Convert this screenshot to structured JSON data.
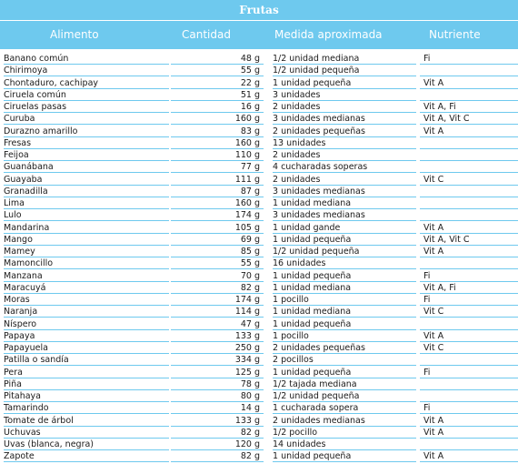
{
  "title": "Frutas",
  "columns": [
    "Alimento",
    "Cantidad",
    "Medida aproximada",
    "Nutriente"
  ],
  "rows": [
    {
      "food": "Banano común",
      "qty": "48 g",
      "measure": "1/2 unidad mediana",
      "nutrient": "Fi"
    },
    {
      "food": "Chirimoya",
      "qty": "55 g",
      "measure": "1/2 unidad pequeña",
      "nutrient": ""
    },
    {
      "food": "Chontaduro, cachipay",
      "qty": "22 g",
      "measure": "1 unidad pequeña",
      "nutrient": "Vit A"
    },
    {
      "food": "Ciruela común",
      "qty": "51 g",
      "measure": "3 unidades",
      "nutrient": ""
    },
    {
      "food": "Ciruelas pasas",
      "qty": "16 g",
      "measure": "2 unidades",
      "nutrient": "Vit A, Fi"
    },
    {
      "food": "Curuba",
      "qty": "160 g",
      "measure": "3 unidades medianas",
      "nutrient": "Vit A, Vit C"
    },
    {
      "food": "Durazno amarillo",
      "qty": "83 g",
      "measure": "2 unidades pequeñas",
      "nutrient": "Vit A"
    },
    {
      "food": "Fresas",
      "qty": "160 g",
      "measure": "13 unidades",
      "nutrient": ""
    },
    {
      "food": "Feijoa",
      "qty": "110 g",
      "measure": "2 unidades",
      "nutrient": ""
    },
    {
      "food": "Guanábana",
      "qty": "77 g",
      "measure": "4 cucharadas soperas",
      "nutrient": ""
    },
    {
      "food": "Guayaba",
      "qty": "111 g",
      "measure": "2 unidades",
      "nutrient": "Vit C"
    },
    {
      "food": "Granadilla",
      "qty": "87 g",
      "measure": "3 unidades medianas",
      "nutrient": ""
    },
    {
      "food": "Lima",
      "qty": "160 g",
      "measure": "1 unidad mediana",
      "nutrient": ""
    },
    {
      "food": "Lulo",
      "qty": "174 g",
      "measure": "3 unidades medianas",
      "nutrient": ""
    },
    {
      "food": "Mandarina",
      "qty": "105 g",
      "measure": "1 unidad gande",
      "nutrient": "Vit A"
    },
    {
      "food": "Mango",
      "qty": "69 g",
      "measure": "1 unidad pequeña",
      "nutrient": "Vit A, Vit C"
    },
    {
      "food": "Mamey",
      "qty": "85 g",
      "measure": "1/2 unidad pequeña",
      "nutrient": "Vit A"
    },
    {
      "food": "Mamoncillo",
      "qty": "55 g",
      "measure": "16 unidades",
      "nutrient": ""
    },
    {
      "food": "Manzana",
      "qty": "70 g",
      "measure": "1 unidad pequeña",
      "nutrient": "Fi"
    },
    {
      "food": "Maracuyá",
      "qty": "82 g",
      "measure": "1 unidad mediana",
      "nutrient": "Vit A, Fi"
    },
    {
      "food": "Moras",
      "qty": "174 g",
      "measure": "1 pocillo",
      "nutrient": "Fi"
    },
    {
      "food": "Naranja",
      "qty": "114 g",
      "measure": "1 unidad mediana",
      "nutrient": "Vit C"
    },
    {
      "food": "Níspero",
      "qty": "47 g",
      "measure": "1 unidad pequeña",
      "nutrient": ""
    },
    {
      "food": "Papaya",
      "qty": "133 g",
      "measure": "1 pocillo",
      "nutrient": "Vit A"
    },
    {
      "food": "Papayuela",
      "qty": "250 g",
      "measure": "2 unidades pequeñas",
      "nutrient": "Vit C"
    },
    {
      "food": "Patilla o sandía",
      "qty": "334 g",
      "measure": "2 pocillos",
      "nutrient": ""
    },
    {
      "food": "Pera",
      "qty": "125 g",
      "measure": "1 unidad pequeña",
      "nutrient": "Fi"
    },
    {
      "food": "Piña",
      "qty": "78 g",
      "measure": "1/2 tajada mediana",
      "nutrient": ""
    },
    {
      "food": "Pitahaya",
      "qty": "80 g",
      "measure": "1/2 unidad pequeña",
      "nutrient": ""
    },
    {
      "food": "Tamarindo",
      "qty": "14 g",
      "measure": "1 cucharada sopera",
      "nutrient": "Fi"
    },
    {
      "food": "Tomate de árbol",
      "qty": "133 g",
      "measure": "2 unidades medianas",
      "nutrient": "Vit A"
    },
    {
      "food": "Uchuvas",
      "qty": "82 g",
      "measure": "1/2 pocillo",
      "nutrient": "Vit A"
    },
    {
      "food": "Uvas (blanca, negra)",
      "qty": "120 g",
      "measure": "14 unidades",
      "nutrient": ""
    },
    {
      "food": "Zapote",
      "qty": "82 g",
      "measure": "1 unidad pequeña",
      "nutrient": "Vit A"
    }
  ]
}
